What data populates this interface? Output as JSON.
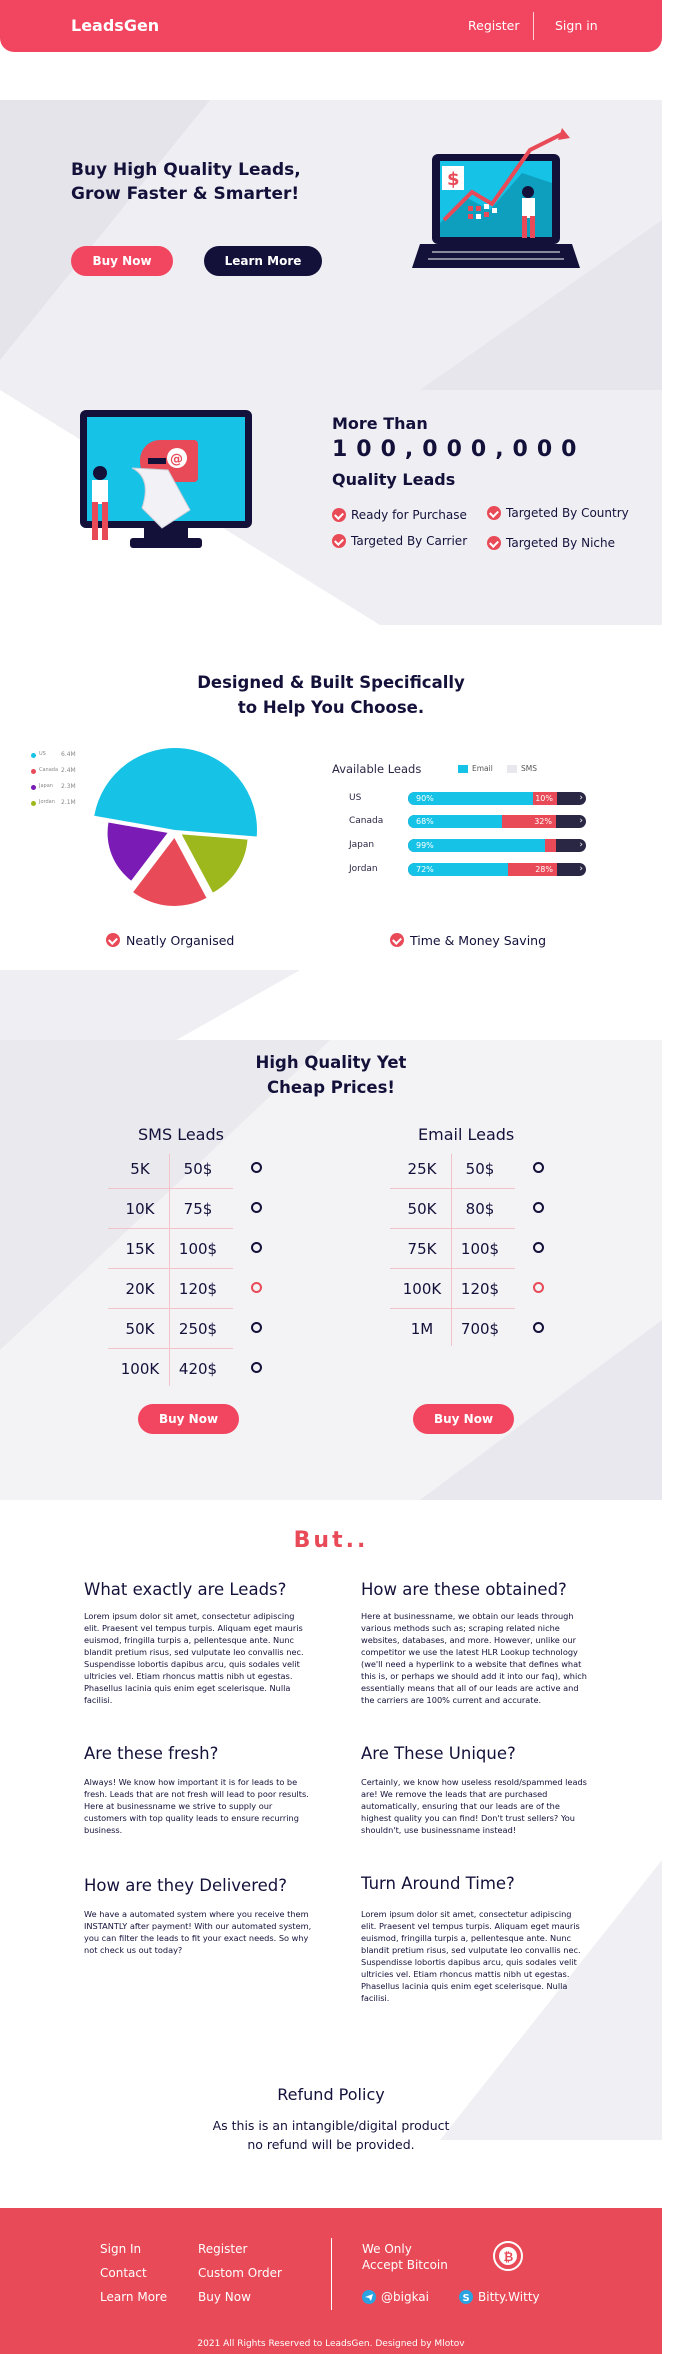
{
  "header": {
    "logo": "LeadsGen",
    "register": "Register",
    "sign_in": "Sign in"
  },
  "hero": {
    "title_line1": "Buy High Quality Leads,",
    "title_line2": "Grow Faster & Smarter!",
    "buy_now": "Buy Now",
    "learn_more": "Learn More"
  },
  "stats": {
    "more_than": "More Than",
    "count": "100,000,000",
    "quality": "Quality Leads",
    "features": [
      "Ready for Purchase",
      "Targeted By Country",
      "Targeted By Carrier",
      "Targeted By Niche"
    ]
  },
  "designed": {
    "title_line1": "Designed & Built Specifically",
    "title_line2": "to Help You Choose."
  },
  "pie_legend": [
    {
      "label": "US",
      "value": "6.4M",
      "color": "#16c3e6"
    },
    {
      "label": "Canada",
      "value": "2.4M",
      "color": "#e84a57"
    },
    {
      "label": "Japan",
      "value": "2.3M",
      "color": "#7a1bb5"
    },
    {
      "label": "Jordan",
      "value": "2.1M",
      "color": "#9cb81c"
    }
  ],
  "available": {
    "title": "Available Leads",
    "legend_email": "Email",
    "legend_sms": "SMS",
    "rows": [
      {
        "country": "US",
        "email": "90%",
        "sms": "10%"
      },
      {
        "country": "Canada",
        "email": "68%",
        "sms": "32%"
      },
      {
        "country": "Japan",
        "email": "99%",
        "sms": ""
      },
      {
        "country": "Jordan",
        "email": "72%",
        "sms": "28%"
      }
    ]
  },
  "chart_data": {
    "type": "bar",
    "title": "Available Leads",
    "categories": [
      "US",
      "Canada",
      "Japan",
      "Jordan"
    ],
    "series": [
      {
        "name": "Email",
        "values": [
          90,
          68,
          99,
          72
        ]
      },
      {
        "name": "SMS",
        "values": [
          10,
          32,
          1,
          28
        ]
      }
    ],
    "stacked": true,
    "orientation": "horizontal",
    "colors": {
      "Email": "#16c3e6",
      "SMS": "#e84a57"
    }
  },
  "pie": {
    "colors": [
      "#16c3e6",
      "#e84a57",
      "#7a1bb5",
      "#9cb81c"
    ],
    "values_millions": [
      6.4,
      2.4,
      2.3,
      2.1
    ]
  },
  "benefits": {
    "left": "Neatly Organised",
    "right": "Time & Money Saving"
  },
  "prices": {
    "title_line1": "High Quality Yet",
    "title_line2": "Cheap Prices!",
    "sms_title": "SMS Leads",
    "email_title": "Email Leads",
    "sms": [
      {
        "qty": "5K",
        "price": "50$"
      },
      {
        "qty": "10K",
        "price": "75$"
      },
      {
        "qty": "15K",
        "price": "100$"
      },
      {
        "qty": "20K",
        "price": "120$"
      },
      {
        "qty": "50K",
        "price": "250$"
      },
      {
        "qty": "100K",
        "price": "420$"
      }
    ],
    "email": [
      {
        "qty": "25K",
        "price": "50$"
      },
      {
        "qty": "50K",
        "price": "80$"
      },
      {
        "qty": "75K",
        "price": "100$"
      },
      {
        "qty": "100K",
        "price": "120$"
      },
      {
        "qty": "1M",
        "price": "700$"
      }
    ],
    "buy_now": "Buy Now"
  },
  "but": {
    "heading": "But..",
    "faqs": [
      {
        "q": "What exactly are Leads?",
        "a": "Lorem ipsum dolor sit amet, consectetur adipiscing elit. Praesent vel tempus turpis. Aliquam eget mauris euismod, fringilla turpis a, pellentesque ante. Nunc blandit pretium risus, sed vulputate leo convallis nec. Suspendisse lobortis dapibus arcu, quis sodales velit ultricies vel. Etiam rhoncus mattis nibh ut egestas. Phasellus lacinia quis enim eget scelerisque. Nulla facilisi."
      },
      {
        "q": "How are these obtained?",
        "a": "Here at businessname, we obtain our leads through various methods such as; scraping related niche websites, databases, and more. However, unlike our competitor we use the latest HLR Lookup technology (we'll need a hyperlink to a website that defines what this is, or perhaps we should add it into our faq), which essentially means that all of our leads are active and the carriers are 100% current and accurate."
      },
      {
        "q": "Are these fresh?",
        "a": "Always! We know how important it is for leads to be fresh. Leads that are not fresh will lead to poor results. Here at businessname we strive to supply our customers with top quality leads to ensure recurring business."
      },
      {
        "q": "Are These Unique?",
        "a": "Certainly, we know how useless resold/spammed leads are! We remove the leads that are purchased automatically, ensuring that our leads are of the highest quality you can find! Don't trust sellers? You shouldn't, use businessname instead!"
      },
      {
        "q": "How are they Delivered?",
        "a": "We have a automated system where you receive them INSTANTLY after payment! With our automated system, you can filter the leads to fit your exact needs. So why not check us out today?"
      },
      {
        "q": "Turn Around Time?",
        "a": "Lorem ipsum dolor sit amet, consectetur adipiscing elit. Praesent vel tempus turpis. Aliquam eget mauris euismod, fringilla turpis a, pellentesque ante. Nunc blandit pretium risus, sed vulputate leo convallis nec. Suspendisse lobortis dapibus arcu, quis sodales velit ultricies vel. Etiam rhoncus mattis nibh ut egestas. Phasellus lacinia quis enim eget scelerisque. Nulla facilisi."
      }
    ]
  },
  "refund": {
    "title": "Refund Policy",
    "line1": "As this is an intangible/digital product",
    "line2": "no refund will be provided."
  },
  "footer": {
    "col1": [
      "Sign In",
      "Contact",
      "Learn More"
    ],
    "col2": [
      "Register",
      "Custom Order",
      "Buy Now"
    ],
    "we_only": "We Only",
    "accept_bitcoin": "Accept Bitcoin",
    "telegram": "@bigkai",
    "skype": "Bitty.Witty",
    "copyright": "2021 All Rights Reserved to LeadsGen. Designed by Mlotov"
  }
}
